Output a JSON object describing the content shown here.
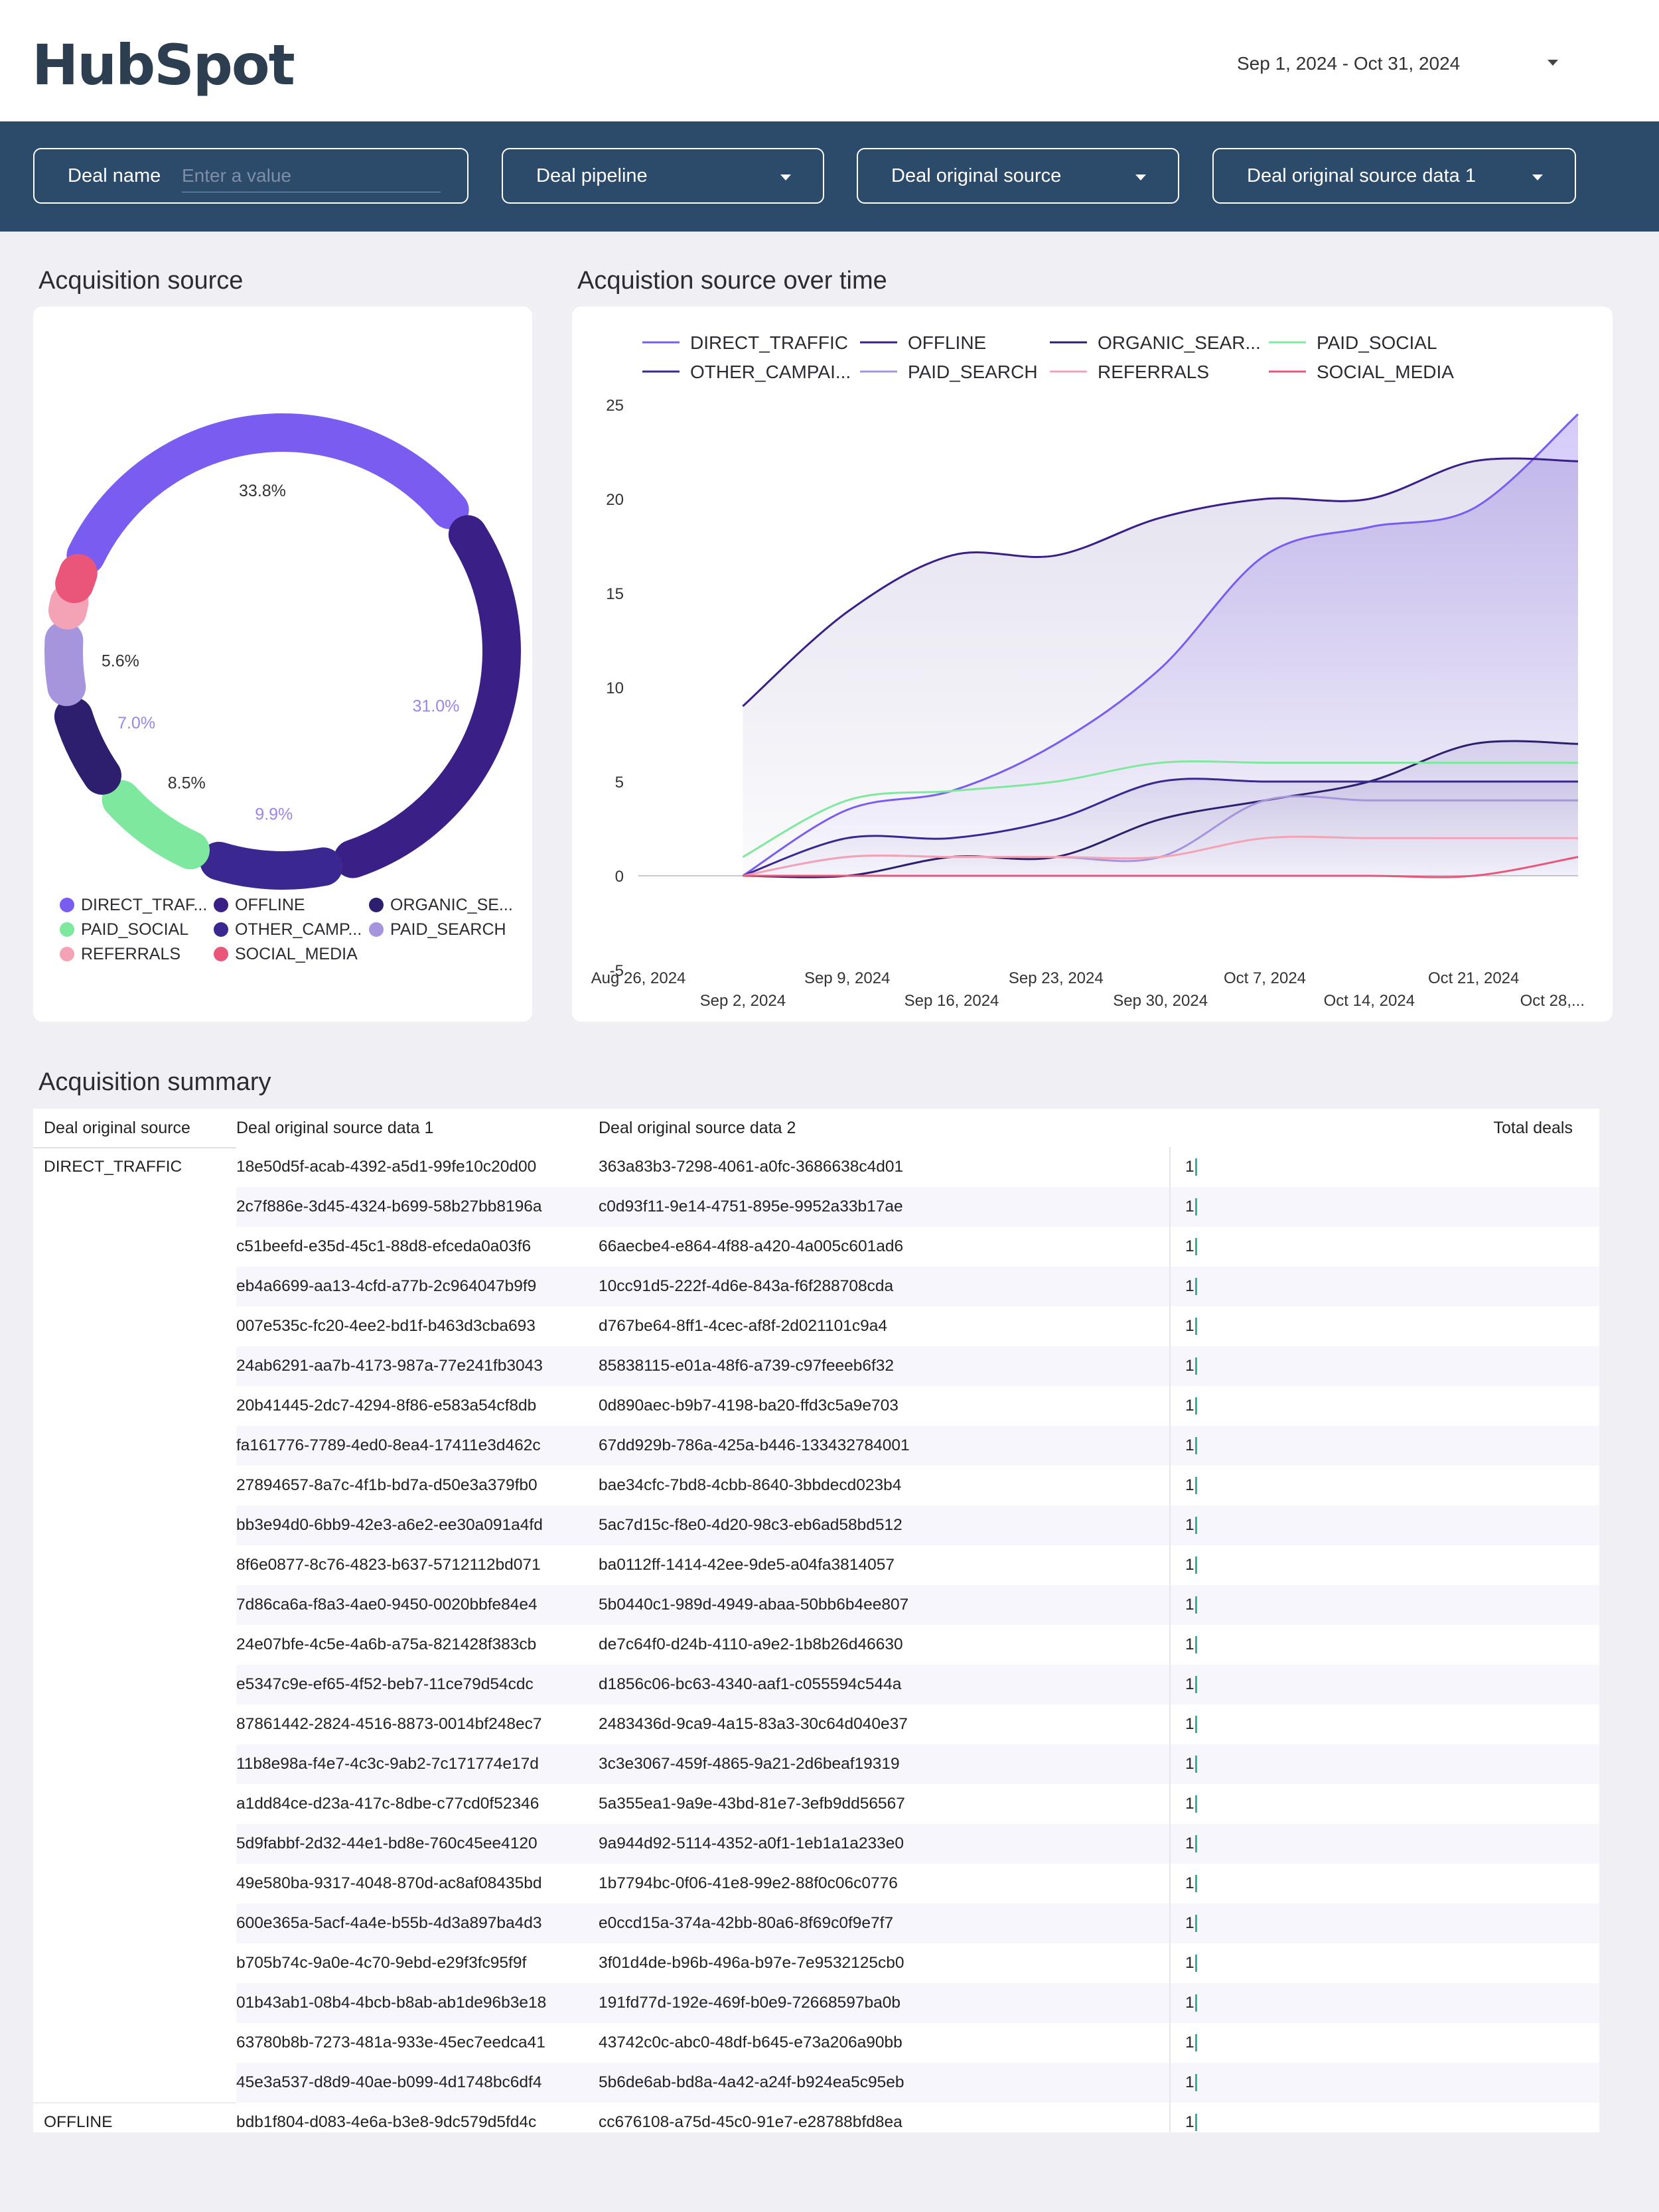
{
  "header": {
    "logo_text": "HubSpot",
    "date_range": "Sep 1, 2024 - Oct 31, 2024"
  },
  "filters": {
    "deal_name_label": "Deal name",
    "deal_name_placeholder": "Enter a value",
    "deal_pipeline_label": "Deal pipeline",
    "deal_original_source_label": "Deal original source",
    "deal_original_source_data1_label": "Deal original source data 1"
  },
  "sections": {
    "acquisition_source": "Acquisition source",
    "acquisition_over_time": "Acquistion source over time",
    "acquisition_summary": "Acquisition summary"
  },
  "colors": {
    "DIRECT_TRAFFIC": "#7b5cf0",
    "OFFLINE": "#3a1f86",
    "ORGANIC_SEARCH": "#2e1f6e",
    "PAID_SOCIAL": "#7ee89e",
    "OTHER_CAMPAIGNS": "#3b2790",
    "PAID_SEARCH": "#a695dc",
    "REFERRALS": "#f4a3b6",
    "SOCIAL_MEDIA": "#e9567a"
  },
  "chart_data": [
    {
      "type": "pie",
      "title": "Acquisition source",
      "donut": true,
      "slices": [
        {
          "name": "DIRECT_TRAFFIC",
          "value": 33.8,
          "label": "33.8%"
        },
        {
          "name": "OFFLINE",
          "value": 31.0,
          "label": "31.0%"
        },
        {
          "name": "OTHER_CAMPAIGNS",
          "value": 9.9,
          "label": "9.9%"
        },
        {
          "name": "PAID_SOCIAL",
          "value": 8.5,
          "label": "8.5%"
        },
        {
          "name": "ORGANIC_SEARCH",
          "value": 7.0,
          "label": "7.0%"
        },
        {
          "name": "PAID_SEARCH",
          "value": 5.6,
          "label": "5.6%"
        },
        {
          "name": "REFERRALS",
          "value": 2.8,
          "label": ""
        },
        {
          "name": "SOCIAL_MEDIA",
          "value": 1.4,
          "label": ""
        }
      ],
      "legend": [
        {
          "label": "DIRECT_TRAF...",
          "series": "DIRECT_TRAFFIC"
        },
        {
          "label": "OFFLINE",
          "series": "OFFLINE"
        },
        {
          "label": "ORGANIC_SE...",
          "series": "ORGANIC_SEARCH"
        },
        {
          "label": "PAID_SOCIAL",
          "series": "PAID_SOCIAL"
        },
        {
          "label": "OTHER_CAMP...",
          "series": "OTHER_CAMPAIGNS"
        },
        {
          "label": "PAID_SEARCH",
          "series": "PAID_SEARCH"
        },
        {
          "label": "REFERRALS",
          "series": "REFERRALS"
        },
        {
          "label": "SOCIAL_MEDIA",
          "series": "SOCIAL_MEDIA"
        }
      ]
    },
    {
      "type": "area",
      "title": "Acquistion source over time",
      "x": [
        "Sep 2, 2024",
        "Sep 9, 2024",
        "Sep 16, 2024",
        "Sep 23, 2024",
        "Sep 30, 2024",
        "Oct 7, 2024",
        "Oct 14, 2024",
        "Oct 21, 2024",
        "Oct 28, 2024"
      ],
      "x_tick_labels": [
        "Aug 26, 2024",
        "Sep 2, 2024",
        "Sep 9, 2024",
        "Sep 16, 2024",
        "Sep 23, 2024",
        "Sep 30, 2024",
        "Oct 7, 2024",
        "Oct 14, 2024",
        "Oct 21, 2024",
        "Oct 28,..."
      ],
      "ylim": [
        -5,
        25
      ],
      "y_ticks": [
        25,
        20,
        15,
        10,
        5,
        0,
        -5
      ],
      "legend_placement": "top",
      "series": [
        {
          "name": "DIRECT_TRAFFIC",
          "legend_label": "DIRECT_TRAFFIC",
          "values": [
            0,
            3.5,
            4.5,
            7,
            11,
            17,
            18.5,
            19.5,
            24.5
          ]
        },
        {
          "name": "OFFLINE",
          "legend_label": "OFFLINE",
          "values": [
            9,
            14,
            17,
            17,
            19,
            20,
            20,
            22,
            22
          ]
        },
        {
          "name": "ORGANIC_SEARCH",
          "legend_label": "ORGANIC_SEAR...",
          "values": [
            0,
            0,
            1,
            1,
            3,
            4,
            5,
            7,
            7
          ]
        },
        {
          "name": "PAID_SOCIAL",
          "legend_label": "PAID_SOCIAL",
          "values": [
            1,
            4,
            4.5,
            5,
            6,
            6,
            6,
            6,
            6
          ]
        },
        {
          "name": "OTHER_CAMPAIGNS",
          "legend_label": "OTHER_CAMPAI...",
          "values": [
            0,
            2,
            2,
            3,
            5,
            5,
            5,
            5,
            5
          ]
        },
        {
          "name": "PAID_SEARCH",
          "legend_label": "PAID_SEARCH",
          "values": [
            0,
            1,
            1,
            1,
            1,
            4,
            4,
            4,
            4
          ]
        },
        {
          "name": "REFERRALS",
          "legend_label": "REFERRALS",
          "values": [
            0,
            1,
            1,
            1,
            1,
            2,
            2,
            2,
            2
          ]
        },
        {
          "name": "SOCIAL_MEDIA",
          "legend_label": "SOCIAL_MEDIA",
          "values": [
            0,
            0,
            0,
            0,
            0,
            0,
            0,
            0,
            1
          ]
        }
      ]
    }
  ],
  "table": {
    "headers": [
      "Deal original source",
      "Deal original source data 1",
      "Deal original source data 2",
      "Total deals"
    ],
    "rows": [
      [
        "DIRECT_TRAFFIC",
        "18e50d5f-acab-4392-a5d1-99fe10c20d00",
        "363a83b3-7298-4061-a0fc-3686638c4d01",
        "1"
      ],
      [
        "",
        "2c7f886e-3d45-4324-b699-58b27bb8196a",
        "c0d93f11-9e14-4751-895e-9952a33b17ae",
        "1"
      ],
      [
        "",
        "c51beefd-e35d-45c1-88d8-efceda0a03f6",
        "66aecbe4-e864-4f88-a420-4a005c601ad6",
        "1"
      ],
      [
        "",
        "eb4a6699-aa13-4cfd-a77b-2c964047b9f9",
        "10cc91d5-222f-4d6e-843a-f6f288708cda",
        "1"
      ],
      [
        "",
        "007e535c-fc20-4ee2-bd1f-b463d3cba693",
        "d767be64-8ff1-4cec-af8f-2d021101c9a4",
        "1"
      ],
      [
        "",
        "24ab6291-aa7b-4173-987a-77e241fb3043",
        "85838115-e01a-48f6-a739-c97feeeb6f32",
        "1"
      ],
      [
        "",
        "20b41445-2dc7-4294-8f86-e583a54cf8db",
        "0d890aec-b9b7-4198-ba20-ffd3c5a9e703",
        "1"
      ],
      [
        "",
        "fa161776-7789-4ed0-8ea4-17411e3d462c",
        "67dd929b-786a-425a-b446-133432784001",
        "1"
      ],
      [
        "",
        "27894657-8a7c-4f1b-bd7a-d50e3a379fb0",
        "bae34cfc-7bd8-4cbb-8640-3bbdecd023b4",
        "1"
      ],
      [
        "",
        "bb3e94d0-6bb9-42e3-a6e2-ee30a091a4fd",
        "5ac7d15c-f8e0-4d20-98c3-eb6ad58bd512",
        "1"
      ],
      [
        "",
        "8f6e0877-8c76-4823-b637-5712112bd071",
        "ba0112ff-1414-42ee-9de5-a04fa3814057",
        "1"
      ],
      [
        "",
        "7d86ca6a-f8a3-4ae0-9450-0020bbfe84e4",
        "5b0440c1-989d-4949-abaa-50bb6b4ee807",
        "1"
      ],
      [
        "",
        "24e07bfe-4c5e-4a6b-a75a-821428f383cb",
        "de7c64f0-d24b-4110-a9e2-1b8b26d46630",
        "1"
      ],
      [
        "",
        "e5347c9e-ef65-4f52-beb7-11ce79d54cdc",
        "d1856c06-bc63-4340-aaf1-c055594c544a",
        "1"
      ],
      [
        "",
        "87861442-2824-4516-8873-0014bf248ec7",
        "2483436d-9ca9-4a15-83a3-30c64d040e37",
        "1"
      ],
      [
        "",
        "11b8e98a-f4e7-4c3c-9ab2-7c171774e17d",
        "3c3e3067-459f-4865-9a21-2d6beaf19319",
        "1"
      ],
      [
        "",
        "a1dd84ce-d23a-417c-8dbe-c77cd0f52346",
        "5a355ea1-9a9e-43bd-81e7-3efb9dd56567",
        "1"
      ],
      [
        "",
        "5d9fabbf-2d32-44e1-bd8e-760c45ee4120",
        "9a944d92-5114-4352-a0f1-1eb1a1a233e0",
        "1"
      ],
      [
        "",
        "49e580ba-9317-4048-870d-ac8af08435bd",
        "1b7794bc-0f06-41e8-99e2-88f0c06c0776",
        "1"
      ],
      [
        "",
        "600e365a-5acf-4a4e-b55b-4d3a897ba4d3",
        "e0ccd15a-374a-42bb-80a6-8f69c0f9e7f7",
        "1"
      ],
      [
        "",
        "b705b74c-9a0e-4c70-9ebd-e29f3fc95f9f",
        "3f01d4de-b96b-496a-b97e-7e9532125cb0",
        "1"
      ],
      [
        "",
        "01b43ab1-08b4-4bcb-b8ab-ab1de96b3e18",
        "191fd77d-192e-469f-b0e9-72668597ba0b",
        "1"
      ],
      [
        "",
        "63780b8b-7273-481a-933e-45ec7eedca41",
        "43742c0c-abc0-48df-b645-e73a206a90bb",
        "1"
      ],
      [
        "",
        "45e3a537-d8d9-40ae-b099-4d1748bc6df4",
        "5b6de6ab-bd8a-4a42-a24f-b924ea5c95eb",
        "1"
      ],
      [
        "OFFLINE",
        "bdb1f804-d083-4e6a-b3e8-9dc579d5fd4c",
        "cc676108-a75d-45c0-91e7-e28788bfd8ea",
        "1"
      ]
    ]
  }
}
